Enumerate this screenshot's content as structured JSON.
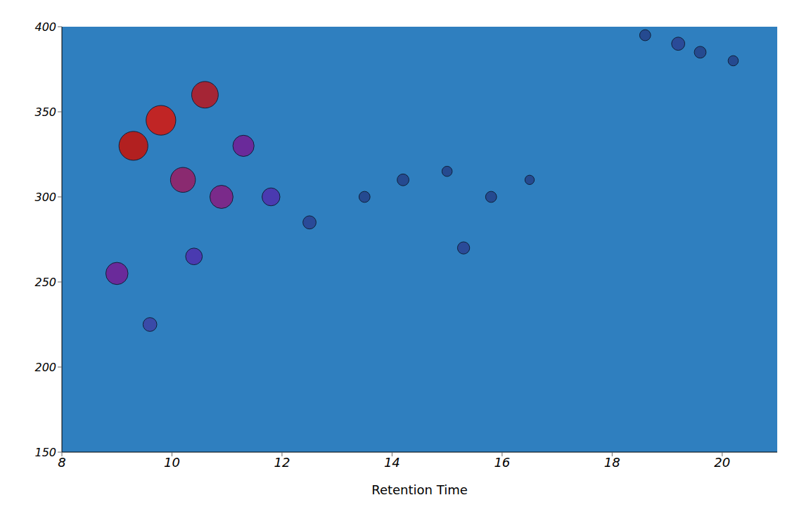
{
  "chart_data": {
    "type": "scatter",
    "x_label": "Retention Time",
    "xlim": [
      8,
      21
    ],
    "xticks": [
      8,
      10,
      12,
      14,
      16,
      18,
      20
    ],
    "ylim": [
      150,
      400
    ],
    "yticks": [
      150,
      200,
      250,
      300,
      350,
      400
    ],
    "grid": false,
    "x": [
      9.0,
      9.3,
      9.8,
      10.2,
      10.6,
      10.9,
      11.3,
      11.8,
      9.6,
      10.4,
      12.5,
      13.5,
      14.2,
      15.0,
      15.8,
      16.5,
      15.3,
      18.6,
      19.2,
      19.6,
      20.2
    ],
    "values": [
      255,
      330,
      345,
      310,
      360,
      300,
      330,
      300,
      225,
      265,
      285,
      300,
      310,
      315,
      300,
      310,
      270,
      395,
      390,
      385,
      380
    ],
    "intensity": [
      55,
      95,
      100,
      70,
      80,
      60,
      50,
      35,
      20,
      30,
      18,
      12,
      14,
      10,
      12,
      8,
      15,
      12,
      18,
      14,
      10
    ],
    "colors": [
      "#6a2a9a",
      "#b22020",
      "#c02525",
      "#8a2a70",
      "#a52535",
      "#7a2a8a",
      "#6a2a9a",
      "#4a3ab0",
      "#3a4aa8",
      "#4a3ab0",
      "#2a4a98",
      "#254a90",
      "#254a90",
      "#254a90",
      "#254a90",
      "#254a90",
      "#2a4a98",
      "#254a90",
      "#2a4a98",
      "#254a90",
      "#254a90"
    ]
  }
}
